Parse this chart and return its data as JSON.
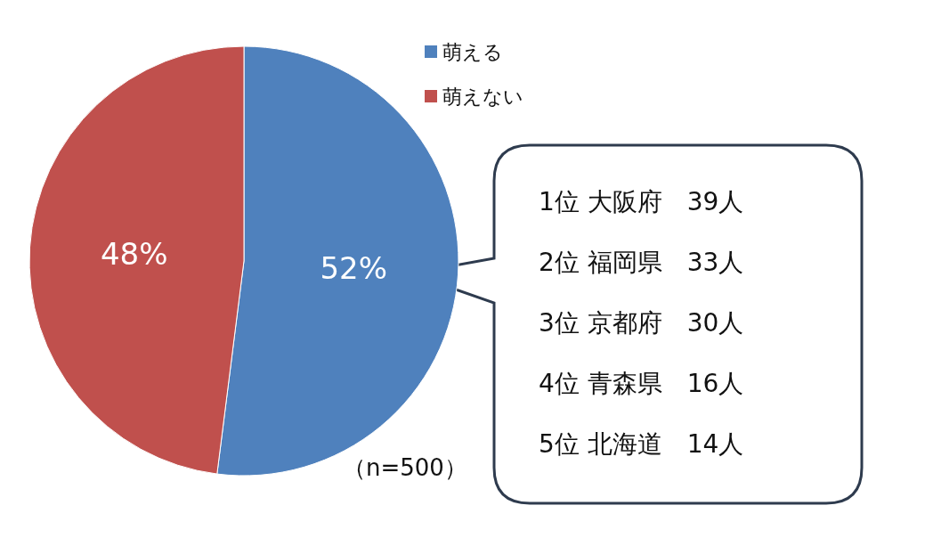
{
  "chart_data": {
    "type": "pie",
    "categories": [
      "萌える",
      "萌えない"
    ],
    "values": [
      52,
      48
    ],
    "value_labels": [
      "52%",
      "48%"
    ],
    "colors": [
      "#4f81bd",
      "#c0504d"
    ],
    "legend": "top right",
    "annotations": [
      "1位 大阪府　39人",
      "2位 福岡県　33人",
      "3位 京都府　30人",
      "4位 青森県　16人",
      "5位 北海道　14人",
      "（n=500）"
    ]
  }
}
